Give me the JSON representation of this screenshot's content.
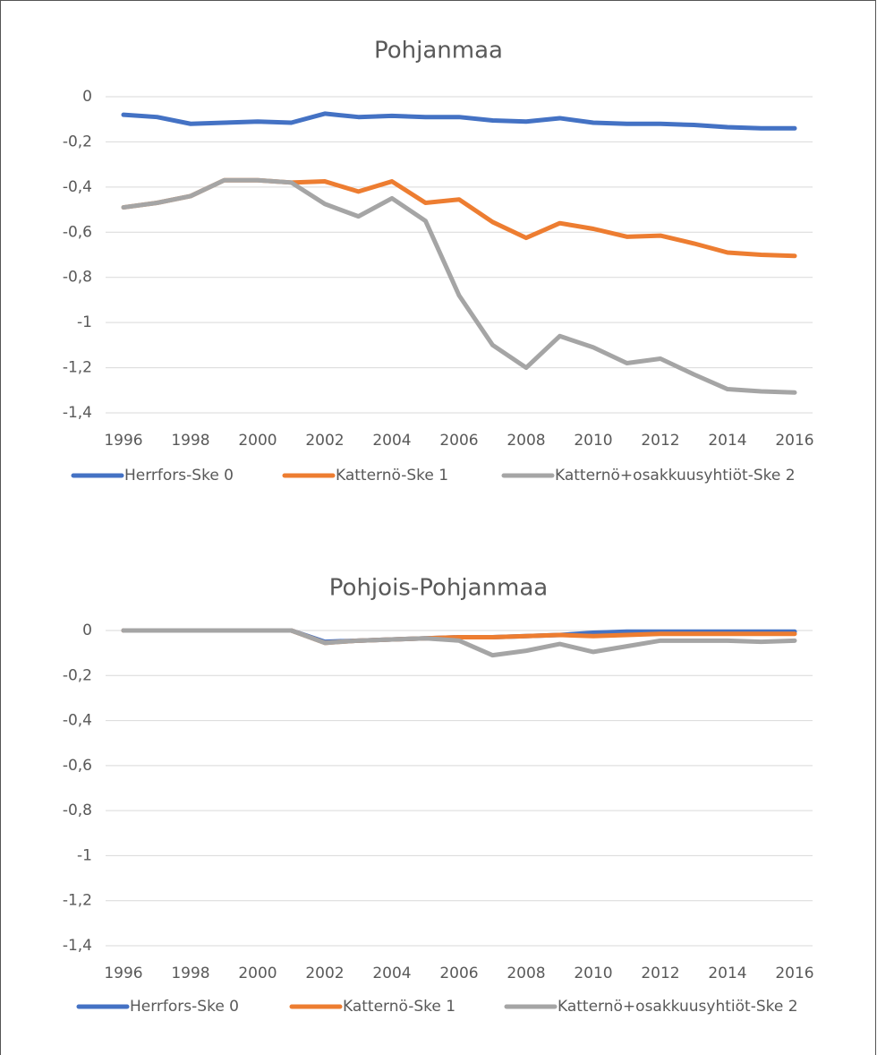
{
  "chart_data": [
    {
      "type": "line",
      "title": "Pohjanmaa",
      "x": [
        1996,
        1997,
        1998,
        1999,
        2000,
        2001,
        2002,
        2003,
        2004,
        2005,
        2006,
        2007,
        2008,
        2009,
        2010,
        2011,
        2012,
        2013,
        2014,
        2015,
        2016
      ],
      "xlim": [
        1996,
        2016
      ],
      "xticks": [
        1996,
        1998,
        2000,
        2002,
        2004,
        2006,
        2008,
        2010,
        2012,
        2014,
        2016
      ],
      "ylim": [
        -1.4,
        0
      ],
      "yticks": [
        0,
        {
          "value": -0.2,
          "label": "-0,2"
        },
        {
          "value": -0.4,
          "label": "-0,4"
        },
        {
          "value": -0.6,
          "label": "-0,6"
        },
        {
          "value": -0.8,
          "label": "-0,8"
        },
        -1,
        {
          "value": -1.2,
          "label": "-1,2"
        },
        {
          "value": -1.4,
          "label": "-1,4"
        }
      ],
      "grid": true,
      "legend": "bottom",
      "series": [
        {
          "name": "Herrfors-Ske 0",
          "color": "#4472c4",
          "values": [
            -0.08,
            -0.09,
            -0.12,
            -0.115,
            -0.11,
            -0.115,
            -0.075,
            -0.09,
            -0.085,
            -0.09,
            -0.09,
            -0.105,
            -0.11,
            -0.095,
            -0.115,
            -0.12,
            -0.12,
            -0.125,
            -0.135,
            -0.14,
            -0.14
          ]
        },
        {
          "name": "Katternö-Ske 1",
          "color": "#ed7d31",
          "values": [
            -0.49,
            -0.47,
            -0.44,
            -0.37,
            -0.37,
            -0.38,
            -0.375,
            -0.42,
            -0.375,
            -0.47,
            -0.455,
            -0.555,
            -0.625,
            -0.56,
            -0.585,
            -0.62,
            -0.615,
            -0.65,
            -0.69,
            -0.7,
            -0.705
          ]
        },
        {
          "name": "Katternö+osakkuusyhtiöt-Ske 2",
          "color": "#a5a5a5",
          "values": [
            -0.49,
            -0.47,
            -0.44,
            -0.37,
            -0.37,
            -0.38,
            -0.475,
            -0.53,
            -0.45,
            -0.55,
            -0.88,
            -1.1,
            -1.2,
            -1.06,
            -1.11,
            -1.18,
            -1.16,
            -1.23,
            -1.295,
            -1.305,
            -1.31
          ]
        }
      ]
    },
    {
      "type": "line",
      "title": "Pohjois-Pohjanmaa",
      "x": [
        1996,
        1997,
        1998,
        1999,
        2000,
        2001,
        2002,
        2003,
        2004,
        2005,
        2006,
        2007,
        2008,
        2009,
        2010,
        2011,
        2012,
        2013,
        2014,
        2015,
        2016
      ],
      "xlim": [
        1996,
        2016
      ],
      "xticks": [
        1996,
        1998,
        2000,
        2002,
        2004,
        2006,
        2008,
        2010,
        2012,
        2014,
        2016
      ],
      "ylim": [
        -1.4,
        0
      ],
      "yticks": [
        0,
        {
          "value": -0.2,
          "label": "-0,2"
        },
        {
          "value": -0.4,
          "label": "-0,4"
        },
        {
          "value": -0.6,
          "label": "-0,6"
        },
        {
          "value": -0.8,
          "label": "-0,8"
        },
        -1,
        {
          "value": -1.2,
          "label": "-1,2"
        },
        {
          "value": -1.4,
          "label": "-1,4"
        }
      ],
      "grid": true,
      "legend": "bottom",
      "series": [
        {
          "name": "Herrfors-Ske 0",
          "color": "#4472c4",
          "values": [
            0,
            0,
            0,
            0,
            0,
            0,
            -0.05,
            -0.045,
            -0.04,
            -0.035,
            -0.03,
            -0.03,
            -0.025,
            -0.02,
            -0.01,
            -0.005,
            -0.005,
            -0.005,
            -0.005,
            -0.005,
            -0.005
          ]
        },
        {
          "name": "Katternö-Ske 1",
          "color": "#ed7d31",
          "values": [
            0,
            0,
            0,
            0,
            0,
            0,
            -0.055,
            -0.045,
            -0.04,
            -0.035,
            -0.03,
            -0.03,
            -0.025,
            -0.02,
            -0.025,
            -0.02,
            -0.015,
            -0.015,
            -0.015,
            -0.015,
            -0.015
          ]
        },
        {
          "name": "Katternö+osakkuusyhtiöt-Ske 2",
          "color": "#a5a5a5",
          "values": [
            0,
            0,
            0,
            0,
            0,
            0,
            -0.055,
            -0.045,
            -0.04,
            -0.035,
            -0.045,
            -0.11,
            -0.09,
            -0.06,
            -0.095,
            -0.07,
            -0.045,
            -0.045,
            -0.045,
            -0.05,
            -0.045
          ]
        }
      ]
    }
  ]
}
